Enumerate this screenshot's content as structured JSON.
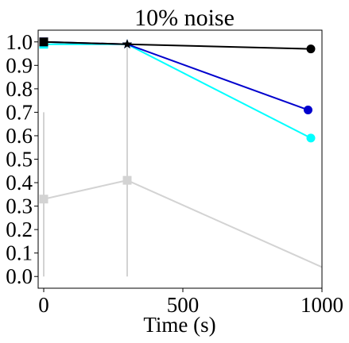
{
  "chart_data": {
    "type": "line",
    "title": "10% noise",
    "xlabel": "Time (s)",
    "ylabel": "",
    "xlim": [
      -20,
      1000
    ],
    "ylim": [
      -0.05,
      1.05
    ],
    "xticks": [
      0,
      500,
      1000
    ],
    "xtick_labels": [
      "0",
      "500",
      "1000"
    ],
    "yticks": [
      0.0,
      0.1,
      0.2,
      0.3,
      0.4,
      0.5,
      0.6,
      0.7,
      0.8,
      0.9,
      1.0
    ],
    "ytick_labels": [
      "0.0",
      "0.1",
      "0.2",
      "0.3",
      "0.4",
      "0.5",
      "0.6",
      "0.7",
      "0.8",
      "0.9",
      "1.0"
    ],
    "grid": false,
    "series": [
      {
        "color": "#d3d3d3",
        "x": [
          0,
          300,
          1000
        ],
        "y": [
          0.33,
          0.41,
          0.04
        ],
        "markers": [
          "square",
          "square",
          "none"
        ],
        "error_y": [
          [
            0.33,
            0.37
          ],
          [
            0.41,
            0.57
          ],
          null
        ]
      },
      {
        "color": "#00ffff",
        "x": [
          0,
          300,
          960
        ],
        "y": [
          0.99,
          0.99,
          0.59
        ],
        "markers": [
          "square",
          "star",
          "circle"
        ]
      },
      {
        "color": "#0000cd",
        "x": [
          0,
          300,
          950
        ],
        "y": [
          1.0,
          0.99,
          0.71
        ],
        "markers": [
          "square",
          "star",
          "circle"
        ]
      },
      {
        "color": "#000000",
        "x": [
          0,
          300,
          960
        ],
        "y": [
          1.0,
          0.99,
          0.97
        ],
        "markers": [
          "square",
          "star",
          "circle"
        ]
      }
    ]
  }
}
